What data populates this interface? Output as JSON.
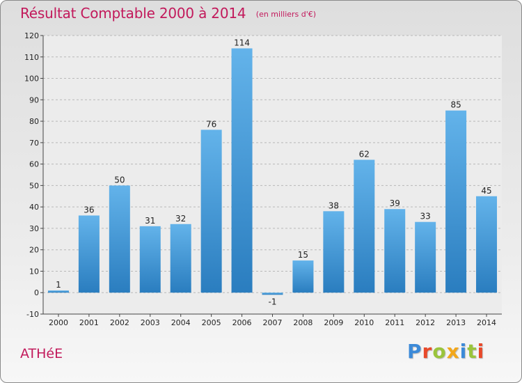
{
  "header": {
    "title": "Résultat Comptable 2000 à 2014",
    "unit": "(en milliers d'€)"
  },
  "commune": "ATHéE",
  "logo": {
    "letters": [
      {
        "char": "P",
        "color": "#3c8ad8"
      },
      {
        "char": "r",
        "color": "#e8492a"
      },
      {
        "char": "o",
        "color": "#9ac43c"
      },
      {
        "char": "x",
        "color": "#f2a71b"
      },
      {
        "char": "i",
        "color": "#3c8ad8"
      },
      {
        "char": "t",
        "color": "#9ac43c"
      },
      {
        "char": "i",
        "color": "#e8492a"
      }
    ]
  },
  "colors": {
    "bar_light": "#63b3ea",
    "bar_dark": "#2a7dbf",
    "title": "#c2195b"
  },
  "chart_data": {
    "type": "bar",
    "title": "Résultat Comptable 2000 à 2014",
    "subtitle": "(en milliers d'€)",
    "xlabel": "",
    "ylabel": "",
    "categories": [
      "2000",
      "2001",
      "2002",
      "2003",
      "2004",
      "2005",
      "2006",
      "2007",
      "2008",
      "2009",
      "2010",
      "2011",
      "2012",
      "2013",
      "2014"
    ],
    "values": [
      1,
      36,
      50,
      31,
      32,
      76,
      114,
      -1,
      15,
      38,
      62,
      39,
      33,
      85,
      45
    ],
    "ylim": [
      -10,
      120
    ],
    "yticks": [
      -10,
      0,
      10,
      20,
      30,
      40,
      50,
      60,
      70,
      80,
      90,
      100,
      110,
      120
    ],
    "grid": true
  }
}
